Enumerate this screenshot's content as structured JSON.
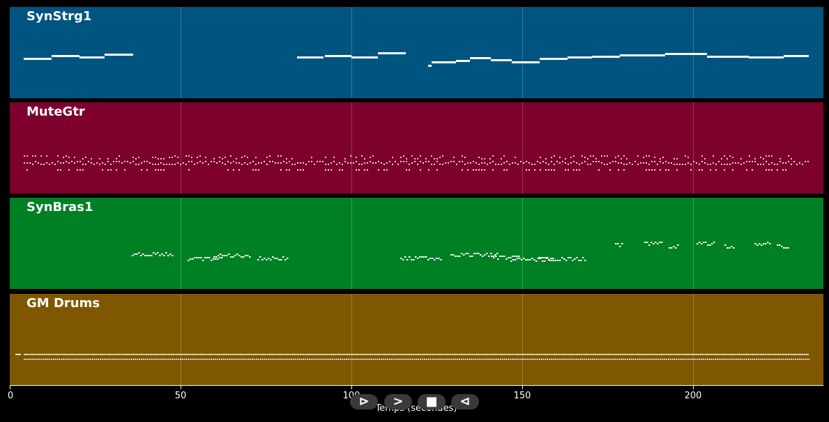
{
  "tracks": [
    {
      "name": "SynStrg1",
      "color": "#005580"
    },
    {
      "name": "MuteGtr",
      "color": "#7d002d"
    },
    {
      "name": "SynBras1",
      "color": "#008024"
    },
    {
      "name": "GM Drums",
      "color": "#7f5700"
    }
  ],
  "axis": {
    "title": "Temps (secondes)",
    "ticks": [
      {
        "value": 0,
        "label": "0"
      },
      {
        "value": 50,
        "label": "50"
      },
      {
        "value": 100,
        "label": "100"
      },
      {
        "value": 150,
        "label": "150"
      },
      {
        "value": 200,
        "label": "200"
      }
    ],
    "range": [
      0,
      238
    ]
  },
  "transport": [
    {
      "name": "play-icon",
      "glyph": "⊳"
    },
    {
      "name": "forward-icon",
      "glyph": ">"
    },
    {
      "name": "stop-icon",
      "glyph": "■"
    },
    {
      "name": "rewind-icon",
      "glyph": "⊲"
    }
  ]
}
